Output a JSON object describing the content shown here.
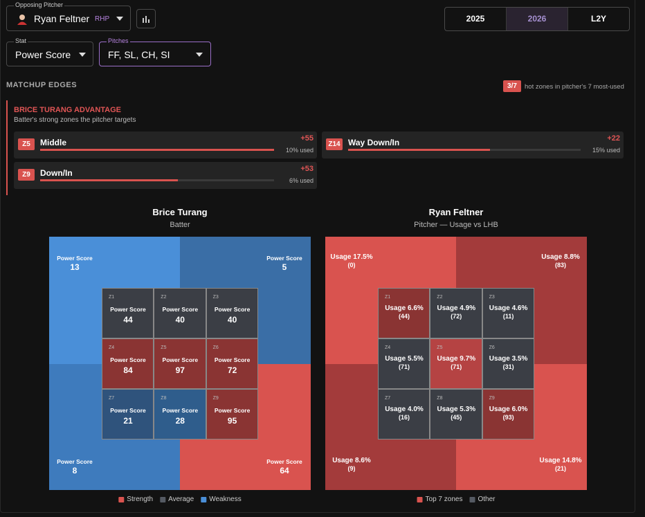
{
  "header": {
    "pitcher_label": "Opposing Pitcher",
    "pitcher_name": "Ryan Feltner",
    "pitcher_hand": "RHP",
    "years": [
      "2025",
      "2026",
      "L2Y"
    ],
    "selected_year": 1,
    "stat_label": "Stat",
    "stat_value": "Power Score",
    "pitches_label": "Pitches",
    "pitches_value": "FF, SL, CH, SI"
  },
  "matchup": {
    "title": "MATCHUP EDGES",
    "badge": "3/7",
    "badge_text": "hot zones in pitcher's 7 most-used",
    "advantage_title": "BRICE TURANG ADVANTAGE",
    "advantage_subtitle": "Batter's strong zones the pitcher targets",
    "edges": [
      {
        "zone": "Z5",
        "name": "Middle",
        "delta": "+55",
        "usage": "10% used",
        "bar": 100
      },
      {
        "zone": "Z14",
        "name": "Way Down/In",
        "delta": "+22",
        "usage": "15% used",
        "bar": 61
      },
      {
        "zone": "Z9",
        "name": "Down/In",
        "delta": "+53",
        "usage": "6% used",
        "bar": 59
      }
    ]
  },
  "batter_panel": {
    "title": "Brice Turang",
    "subtitle": "Batter",
    "outer": [
      {
        "label": "Power Score",
        "value": "13",
        "color": "#4a8fd8"
      },
      {
        "label": "Power Score",
        "value": "5",
        "color": "#3a6ea6"
      },
      {
        "label": "Power Score",
        "value": "8",
        "color": "#3e7bbd"
      },
      {
        "label": "Power Score",
        "value": "64",
        "color": "#d9534f"
      }
    ],
    "zones": [
      {
        "id": "Z1",
        "label": "Power Score",
        "value": "44",
        "color": "#3b3e45"
      },
      {
        "id": "Z2",
        "label": "Power Score",
        "value": "40",
        "color": "#3b3e45"
      },
      {
        "id": "Z3",
        "label": "Power Score",
        "value": "40",
        "color": "#3b3e45"
      },
      {
        "id": "Z4",
        "label": "Power Score",
        "value": "84",
        "color": "#8a3433"
      },
      {
        "id": "Z5",
        "label": "Power Score",
        "value": "97",
        "color": "#8a3433"
      },
      {
        "id": "Z6",
        "label": "Power Score",
        "value": "72",
        "color": "#8a3433"
      },
      {
        "id": "Z7",
        "label": "Power Score",
        "value": "21",
        "color": "#2f537c"
      },
      {
        "id": "Z8",
        "label": "Power Score",
        "value": "28",
        "color": "#2f5d8c"
      },
      {
        "id": "Z9",
        "label": "Power Score",
        "value": "95",
        "color": "#8a3433"
      }
    ],
    "legend": [
      {
        "label": "Strength",
        "color": "#d9534f"
      },
      {
        "label": "Average",
        "color": "#555a63"
      },
      {
        "label": "Weakness",
        "color": "#4a8fd8"
      }
    ]
  },
  "pitcher_panel": {
    "title": "Ryan Feltner",
    "subtitle": "Pitcher — Usage vs LHB",
    "outer": [
      {
        "label": "Usage 17.5%",
        "value": "(0)",
        "color": "#d9534f"
      },
      {
        "label": "Usage 8.8%",
        "value": "(83)",
        "color": "#a33b3b"
      },
      {
        "label": "Usage 8.6%",
        "value": "(9)",
        "color": "#a33b3b"
      },
      {
        "label": "Usage 14.8%",
        "value": "(21)",
        "color": "#d9534f"
      }
    ],
    "zones": [
      {
        "id": "Z1",
        "label": "Usage 6.6%",
        "value": "(44)",
        "color": "#8a3433"
      },
      {
        "id": "Z2",
        "label": "Usage 4.9%",
        "value": "(72)",
        "color": "#3b3e45"
      },
      {
        "id": "Z3",
        "label": "Usage 4.6%",
        "value": "(11)",
        "color": "#3b3e45"
      },
      {
        "id": "Z4",
        "label": "Usage 5.5%",
        "value": "(71)",
        "color": "#3b3e45"
      },
      {
        "id": "Z5",
        "label": "Usage 9.7%",
        "value": "(71)",
        "color": "#b54343"
      },
      {
        "id": "Z6",
        "label": "Usage 3.5%",
        "value": "(31)",
        "color": "#3b3e45"
      },
      {
        "id": "Z7",
        "label": "Usage 4.0%",
        "value": "(16)",
        "color": "#3b3e45"
      },
      {
        "id": "Z8",
        "label": "Usage 5.3%",
        "value": "(45)",
        "color": "#3b3e45"
      },
      {
        "id": "Z9",
        "label": "Usage 6.0%",
        "value": "(93)",
        "color": "#8a3433"
      }
    ],
    "legend": [
      {
        "label": "Top 7 zones",
        "color": "#d9534f"
      },
      {
        "label": "Other",
        "color": "#555a63"
      }
    ]
  }
}
